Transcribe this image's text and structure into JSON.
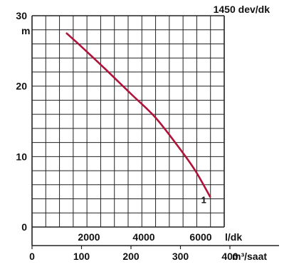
{
  "chart_data": {
    "type": "line",
    "title": "1450 dev/dk",
    "ylabel": "m",
    "xlabel": "m³/saat",
    "secondary_xlabel": "l/dk",
    "xlim": [
      0,
      400
    ],
    "ylim": [
      0,
      30
    ],
    "x_ticks": [
      "0",
      "100",
      "200",
      "300",
      "400"
    ],
    "y_ticks": [
      "0",
      "10",
      "20",
      "30"
    ],
    "secondary_x_ticks": [
      "2000",
      "4000",
      "6000"
    ],
    "grid": true,
    "series": [
      {
        "name": "1",
        "color": "#b0123a",
        "x": [
          70,
          100,
          150,
          200,
          250,
          300,
          330,
          360
        ],
        "y": [
          27.5,
          25.6,
          22.3,
          18.9,
          15.5,
          11,
          8,
          4.3
        ]
      }
    ]
  }
}
